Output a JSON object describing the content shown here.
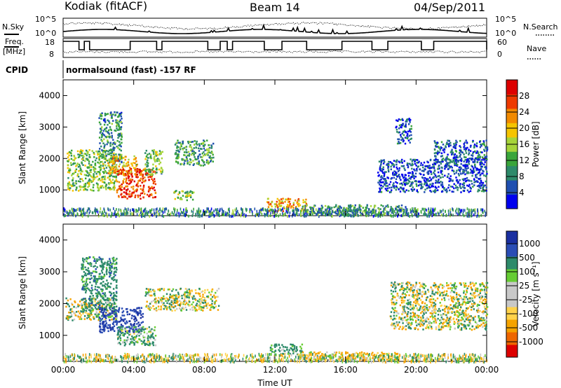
{
  "header": {
    "station": "Kodiak (fitACF)",
    "beam": "Beam 14",
    "date": "04/Sep/2011"
  },
  "side_labels": {
    "nsky": "N.Sky",
    "freq": "Freq.",
    "freq_unit": "[MHz]",
    "cpid": "CPID",
    "nsearch": "N.Search",
    "nave": "Nave"
  },
  "cpid_text": "normalsound (fast) -157 RF",
  "noise_axis_left": [
    "10^5",
    "10^0"
  ],
  "noise_axis_right": [
    "10^5",
    "10^0"
  ],
  "freq_axis": [
    "18",
    "8"
  ],
  "nave_axis": [
    "60",
    "0"
  ],
  "colors": {
    "power_scale": [
      "#0000ee",
      "#1f4fb0",
      "#2d8a6a",
      "#3aa53a",
      "#a6d43a",
      "#f5c400",
      "#f28a00",
      "#ee3a00",
      "#dd0000"
    ],
    "velocity_scale": [
      "#dd0000",
      "#ee6600",
      "#f5a300",
      "#ffd24a",
      "#c8c8c8",
      "#c8c8c8",
      "#66cc33",
      "#2d8a6a",
      "#2a4db5",
      "#1a2fa0"
    ],
    "ground_scatter": "#c8c8c8"
  },
  "chart_data": [
    {
      "type": "heatmap",
      "name": "power",
      "ylabel": "Slant Range [km]",
      "yticks": [
        "1000",
        "2000",
        "3000",
        "4000"
      ],
      "ylim": [
        180,
        4500
      ],
      "xlim": [
        0,
        24
      ],
      "xticks": [
        "00:00",
        "04:00",
        "08:00",
        "12:00",
        "16:00",
        "20:00",
        "00:00"
      ],
      "colorbar_label": "Power [dB]",
      "colorbar_ticks": [
        "4",
        "8",
        "12",
        "16",
        "20",
        "24",
        "28"
      ],
      "crange": [
        0,
        32
      ],
      "echo_regions": [
        {
          "t0": 0.2,
          "t1": 3.0,
          "r0": 1000,
          "r1": 2300,
          "level": 14
        },
        {
          "t0": 2.0,
          "t1": 3.3,
          "r0": 1900,
          "r1": 3500,
          "level": 9
        },
        {
          "t0": 2.5,
          "t1": 4.2,
          "r0": 1500,
          "r1": 2100,
          "level": 20
        },
        {
          "t0": 3.0,
          "t1": 5.2,
          "r0": 750,
          "r1": 1700,
          "level": 27
        },
        {
          "t0": 4.6,
          "t1": 5.6,
          "r0": 1500,
          "r1": 2300,
          "level": 13
        },
        {
          "t0": 6.3,
          "t1": 8.5,
          "r0": 1800,
          "r1": 2600,
          "level": 11
        },
        {
          "t0": 6.2,
          "t1": 7.4,
          "r0": 700,
          "r1": 1000,
          "level": 15
        },
        {
          "t0": 11.5,
          "t1": 13.8,
          "r0": 350,
          "r1": 750,
          "level": 22
        },
        {
          "t0": 13.5,
          "t1": 19.5,
          "r0": 250,
          "r1": 550,
          "level": 10
        },
        {
          "t0": 17.8,
          "t1": 24.0,
          "r0": 950,
          "r1": 2000,
          "level": 5
        },
        {
          "t0": 21.0,
          "t1": 24.0,
          "r0": 1900,
          "r1": 2600,
          "level": 6
        },
        {
          "t0": 18.8,
          "t1": 19.7,
          "r0": 2500,
          "r1": 3300,
          "level": 6
        }
      ]
    },
    {
      "type": "heatmap",
      "name": "velocity",
      "ylabel": "Slant Range [km]",
      "yticks": [
        "1000",
        "2000",
        "3000",
        "4000"
      ],
      "ylim": [
        180,
        4500
      ],
      "xlim": [
        0,
        24
      ],
      "xticks": [
        "00:00",
        "04:00",
        "08:00",
        "12:00",
        "16:00",
        "20:00",
        "00:00"
      ],
      "xlabel": "Time UT",
      "colorbar_label": "Velocity [m s⁻¹]",
      "colorbar_ticks": [
        "1000",
        "500",
        "100",
        "25",
        "-25",
        "-100",
        "-500",
        "-1000"
      ],
      "echo_regions": [
        {
          "t0": 0.1,
          "t1": 3.0,
          "r0": 1500,
          "r1": 2200,
          "vel": 0
        },
        {
          "t0": 1.0,
          "t1": 3.0,
          "r0": 1800,
          "r1": 3500,
          "vel": 300
        },
        {
          "t0": 2.0,
          "t1": 4.5,
          "r0": 1100,
          "r1": 1900,
          "vel": 900
        },
        {
          "t0": 3.0,
          "t1": 5.2,
          "r0": 700,
          "r1": 1300,
          "vel": 200
        },
        {
          "t0": 4.6,
          "t1": 8.8,
          "r0": 1800,
          "r1": 2500,
          "vel": 0
        },
        {
          "t0": 11.7,
          "t1": 13.5,
          "r0": 400,
          "r1": 750,
          "vel": 250
        },
        {
          "t0": 13.3,
          "t1": 19.0,
          "r0": 250,
          "r1": 500,
          "vel": -150
        },
        {
          "t0": 18.5,
          "t1": 24.0,
          "r0": 1200,
          "r1": 2700,
          "vel": 0
        }
      ]
    }
  ]
}
